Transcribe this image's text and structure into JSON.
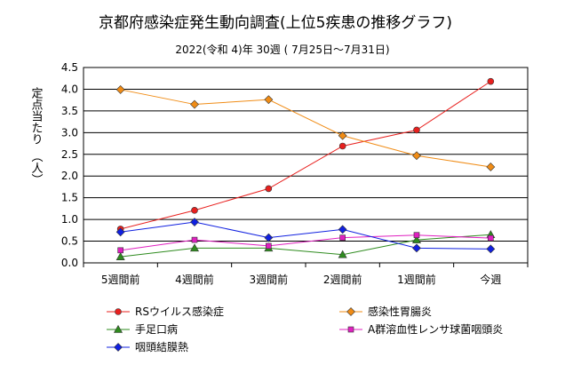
{
  "chart_data": {
    "type": "line",
    "title": "京都府感染症発生動向調査(上位5疾患の推移グラフ)",
    "subtitle": "2022(令和 4)年 30週 ( 7月25日～7月31日)",
    "ylabel": "定点当たり　（人）",
    "xlabel": "",
    "ylim": [
      0,
      4.5
    ],
    "yticks": [
      "0.0",
      "0.5",
      "1.0",
      "1.5",
      "2.0",
      "2.5",
      "3.0",
      "3.5",
      "4.0",
      "4.5"
    ],
    "categories": [
      "5週間前",
      "4週間前",
      "3週間前",
      "2週間前",
      "1週間前",
      "今週"
    ],
    "grid": true,
    "legend_position": "bottom",
    "series": [
      {
        "name": "RSウイルス感染症",
        "color": "#e8201e",
        "marker": "circle",
        "values": [
          0.78,
          1.21,
          1.71,
          2.69,
          3.06,
          4.18
        ]
      },
      {
        "name": "感染性胃腸炎",
        "color": "#f08c16",
        "marker": "diamond",
        "values": [
          3.99,
          3.65,
          3.76,
          2.93,
          2.47,
          2.21
        ]
      },
      {
        "name": "手足口病",
        "color": "#2e8b1e",
        "marker": "triangle",
        "values": [
          0.14,
          0.34,
          0.34,
          0.19,
          0.53,
          0.65
        ]
      },
      {
        "name": "A群溶血性レンサ球菌咽頭炎",
        "color": "#e020c0",
        "marker": "square",
        "values": [
          0.29,
          0.53,
          0.39,
          0.58,
          0.64,
          0.57
        ]
      },
      {
        "name": "咽頭結膜熱",
        "color": "#1020e0",
        "marker": "diamond",
        "values": [
          0.71,
          0.94,
          0.58,
          0.77,
          0.34,
          0.32
        ]
      }
    ]
  }
}
